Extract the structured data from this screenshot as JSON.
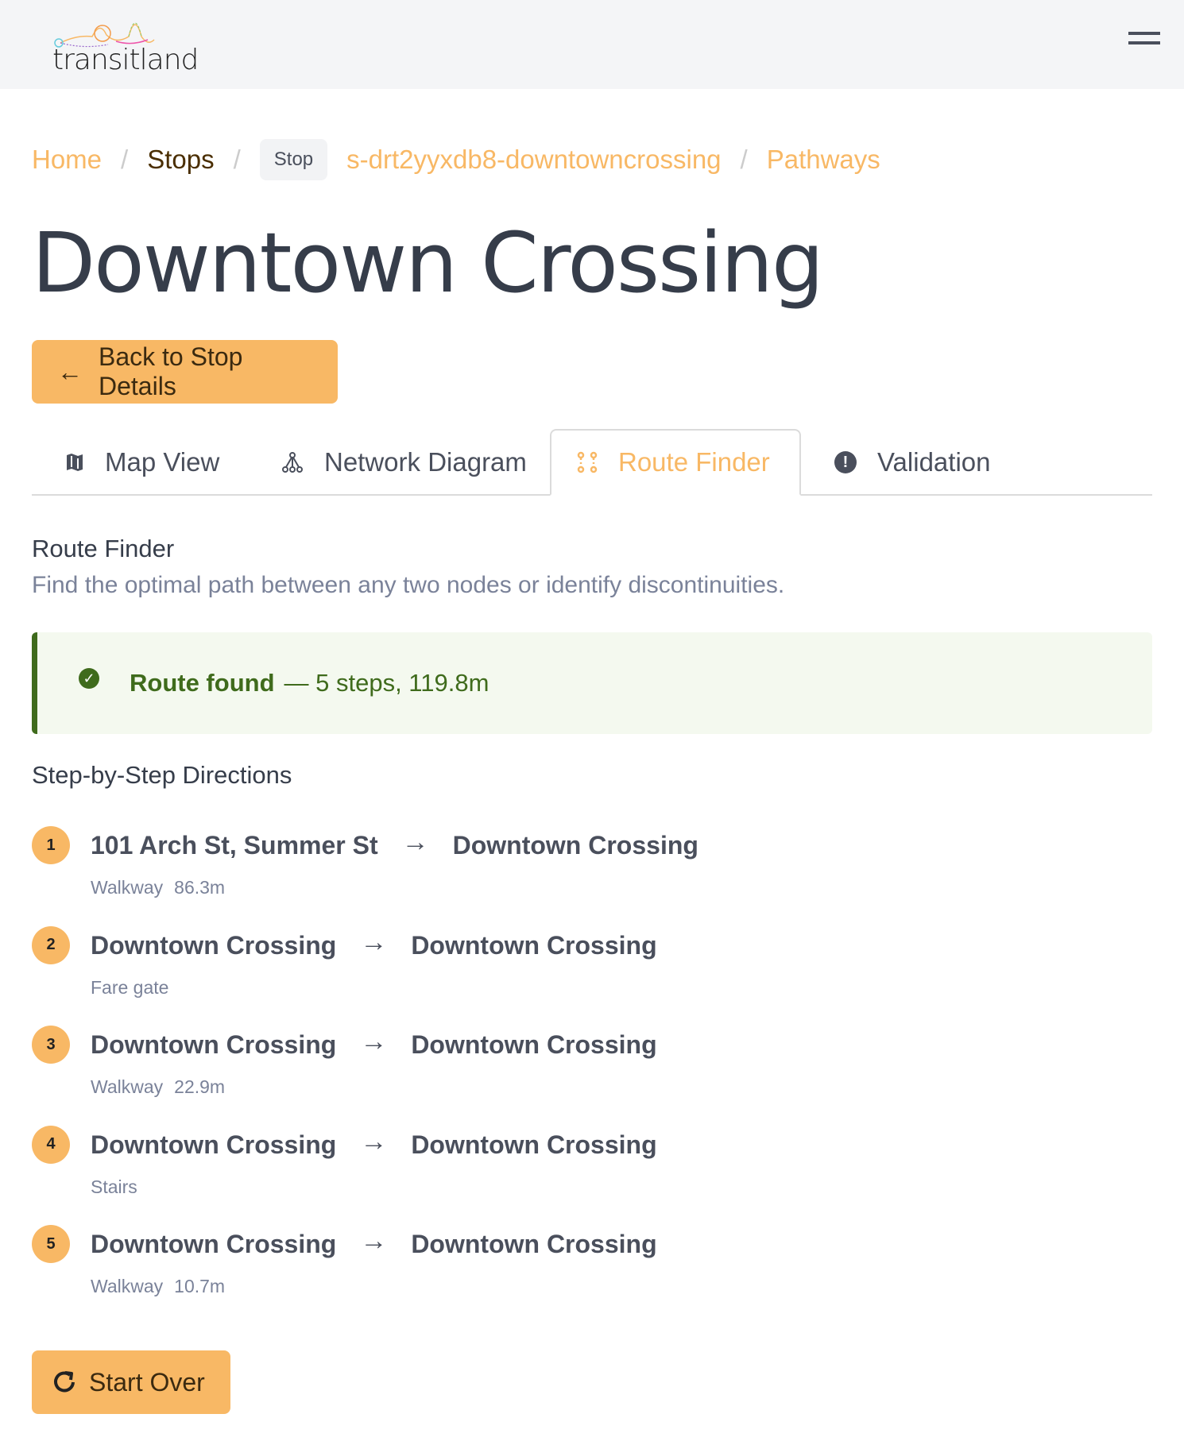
{
  "header": {
    "logo_text": "transitland",
    "menu_icon": "hamburger-icon"
  },
  "breadcrumb": {
    "home": "Home",
    "stops": "Stops",
    "tag": "Stop",
    "stop_id": "s-drt2yyxdb8-downtowncrossing",
    "pathways": "Pathways"
  },
  "title": "Downtown Crossing",
  "back_button": "Back to Stop Details",
  "tabs": [
    {
      "label": "Map View",
      "icon": "map-icon"
    },
    {
      "label": "Network Diagram",
      "icon": "network-icon"
    },
    {
      "label": "Route Finder",
      "icon": "route-icon",
      "active": true
    },
    {
      "label": "Validation",
      "icon": "exclamation-circle-icon"
    }
  ],
  "section": {
    "title": "Route Finder",
    "description": "Find the optimal path between any two nodes or identify discontinuities."
  },
  "alert": {
    "bold": "Route found",
    "detail": "— 5 steps, 119.8m",
    "color": "#3f6b1c"
  },
  "directions_title": "Step-by-Step Directions",
  "steps": [
    {
      "n": "1",
      "from": "101 Arch St, Summer St",
      "to": "Downtown Crossing",
      "mode": "Walkway",
      "length": "86.3m"
    },
    {
      "n": "2",
      "from": "Downtown Crossing",
      "to": "Downtown Crossing",
      "mode": "Fare gate",
      "length": ""
    },
    {
      "n": "3",
      "from": "Downtown Crossing",
      "to": "Downtown Crossing",
      "mode": "Walkway",
      "length": "22.9m"
    },
    {
      "n": "4",
      "from": "Downtown Crossing",
      "to": "Downtown Crossing",
      "mode": "Stairs",
      "length": ""
    },
    {
      "n": "5",
      "from": "Downtown Crossing",
      "to": "Downtown Crossing",
      "mode": "Walkway",
      "length": "10.7m"
    }
  ],
  "start_over": "Start Over",
  "accent": "#f8b865"
}
